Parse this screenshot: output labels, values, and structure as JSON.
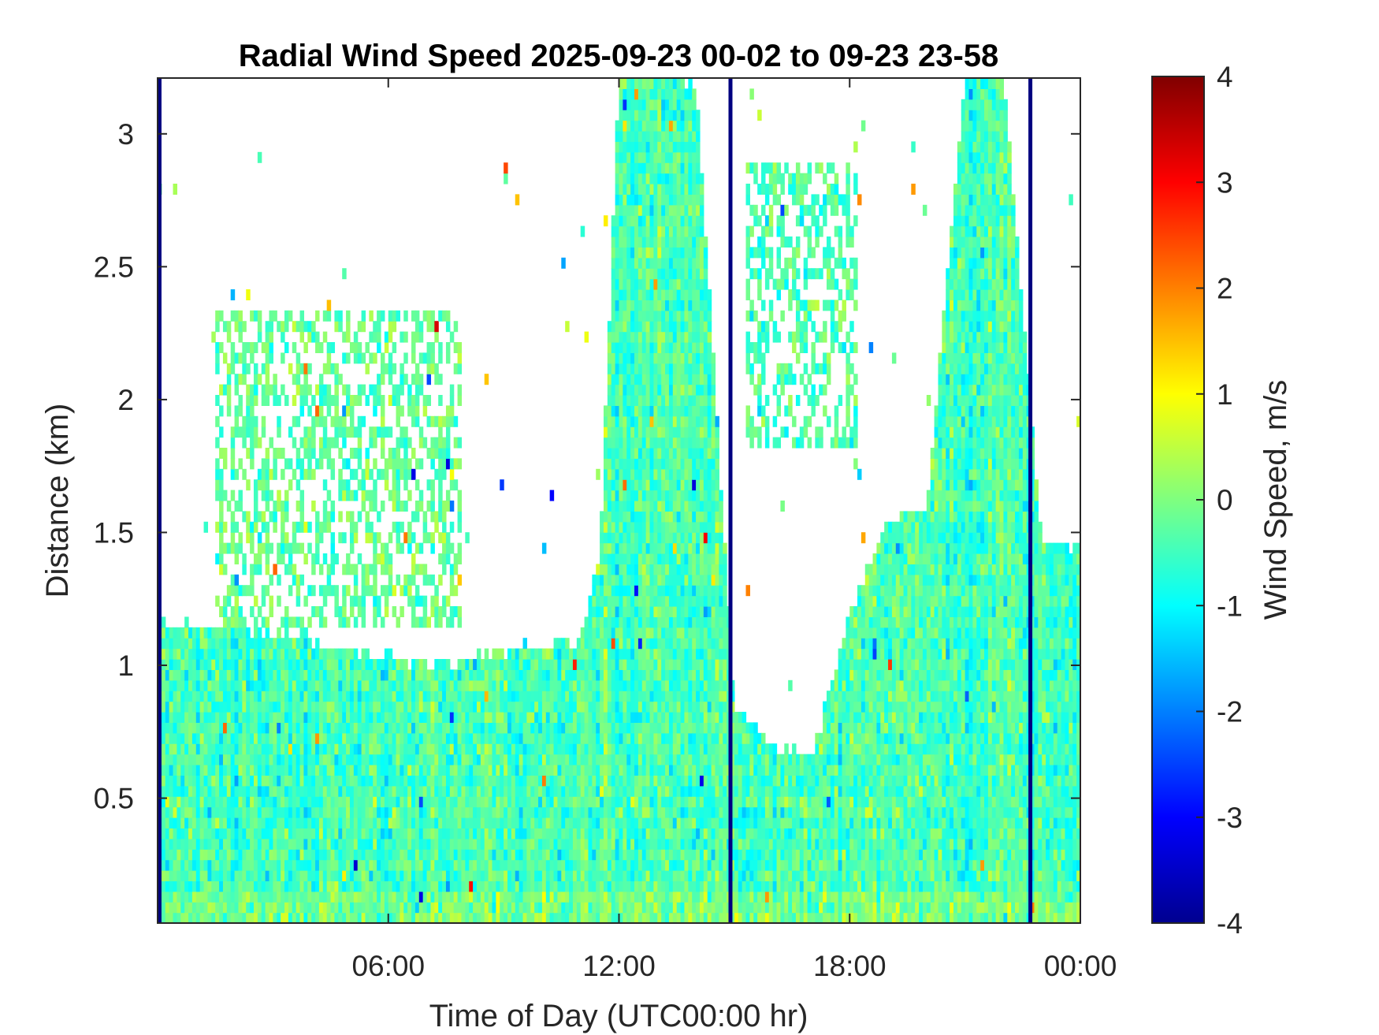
{
  "chart_data": {
    "type": "heatmap",
    "title": "Radial Wind Speed 2025-09-23 00-02 to 09-23 23-58",
    "xlabel": "Time of Day (UTC00:00 hr)",
    "ylabel": "Distance (km)",
    "colorbar_label": "Wind Speed, m/s",
    "colormap": "jet",
    "x_range_hours": [
      0,
      24
    ],
    "y_range_km": [
      0.03,
      3.21
    ],
    "color_range": [
      -4,
      4
    ],
    "x_ticks": [
      {
        "value": 6,
        "label": "06:00"
      },
      {
        "value": 12,
        "label": "12:00"
      },
      {
        "value": 18,
        "label": "18:00"
      },
      {
        "value": 24,
        "label": "00:00"
      }
    ],
    "y_ticks": [
      {
        "value": 0.5,
        "label": "0.5"
      },
      {
        "value": 1,
        "label": "1"
      },
      {
        "value": 1.5,
        "label": "1.5"
      },
      {
        "value": 2,
        "label": "2"
      },
      {
        "value": 2.5,
        "label": "2.5"
      },
      {
        "value": 3,
        "label": "3"
      }
    ],
    "colorbar_ticks": [
      {
        "value": 4,
        "label": "4"
      },
      {
        "value": 3,
        "label": "3"
      },
      {
        "value": 2,
        "label": "2"
      },
      {
        "value": 1,
        "label": "1"
      },
      {
        "value": 0,
        "label": "0"
      },
      {
        "value": -1,
        "label": "-1"
      },
      {
        "value": -2,
        "label": "-2"
      },
      {
        "value": -3,
        "label": "-3"
      },
      {
        "value": -4,
        "label": "-4"
      }
    ],
    "data_top_km_by_hour": [
      {
        "hour": 0,
        "top_km": 1.15
      },
      {
        "hour": 1,
        "top_km": 1.15
      },
      {
        "hour": 2,
        "top_km": 1.15
      },
      {
        "hour": 3,
        "top_km": 1.13
      },
      {
        "hour": 4,
        "top_km": 1.1
      },
      {
        "hour": 5,
        "top_km": 1.05
      },
      {
        "hour": 6,
        "top_km": 1.03
      },
      {
        "hour": 7,
        "top_km": 1.0
      },
      {
        "hour": 8,
        "top_km": 1.02
      },
      {
        "hour": 9,
        "top_km": 1.05
      },
      {
        "hour": 10,
        "top_km": 1.08
      },
      {
        "hour": 11,
        "top_km": 1.1
      },
      {
        "hour": 11.5,
        "top_km": 1.42
      },
      {
        "hour": 12,
        "top_km": 3.21
      },
      {
        "hour": 14,
        "top_km": 3.21
      },
      {
        "hour": 15,
        "top_km": 0.85
      },
      {
        "hour": 16,
        "top_km": 0.7
      },
      {
        "hour": 17,
        "top_km": 0.65
      },
      {
        "hour": 18,
        "top_km": 1.2
      },
      {
        "hour": 19,
        "top_km": 1.55
      },
      {
        "hour": 20,
        "top_km": 1.6
      },
      {
        "hour": 21,
        "top_km": 3.21
      },
      {
        "hour": 22,
        "top_km": 3.21
      },
      {
        "hour": 23,
        "top_km": 1.45
      },
      {
        "hour": 24,
        "top_km": 1.45
      }
    ],
    "elevated_layers": [
      {
        "hour_start": 1.5,
        "hour_end": 7.9,
        "base_km": 1.15,
        "top_km": 2.35,
        "mean_ms": -0.2
      },
      {
        "hour_start": 15.3,
        "hour_end": 18.2,
        "base_km": 1.8,
        "top_km": 2.9,
        "mean_ms": -0.4
      }
    ],
    "negative_spikes": [
      {
        "hour": 0.05,
        "value_ms": -4
      },
      {
        "hour": 14.9,
        "value_ms": -4
      },
      {
        "hour": 22.7,
        "value_ms": -4
      }
    ]
  }
}
